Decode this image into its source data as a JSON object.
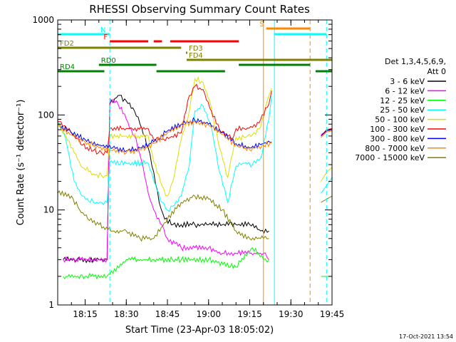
{
  "chart_data": {
    "type": "line",
    "title": "RHESSI Observing Summary Count Rates",
    "xlabel": "Start Time (23-Apr-03 18:05:02)",
    "ylabel": "Count Rate (s⁻¹ detector⁻¹)",
    "y_scale": "log",
    "ylim": [
      1,
      1000
    ],
    "xlim": [
      "18:05",
      "19:45"
    ],
    "x_ticks": [
      "18:15",
      "18:30",
      "18:45",
      "19:00",
      "19:15",
      "19:30",
      "19:45"
    ],
    "y_ticks": [
      "1",
      "10",
      "100",
      "1000"
    ],
    "timestamp": "17-Oct-2021 13:54",
    "legend": {
      "header": [
        "Det 1,3,4,5,6,9,",
        "Att 0"
      ],
      "placement": "right"
    },
    "series": [
      {
        "name": "3 - 6 keV",
        "color": "#000000",
        "x": [
          "18:07",
          "18:12",
          "18:16",
          "18:20",
          "18:23",
          "18:24",
          "18:27",
          "18:30",
          "18:33",
          "18:35",
          "18:38",
          "18:40",
          "18:42",
          "18:44",
          "18:47",
          "18:50",
          "18:55",
          "19:00",
          "19:05",
          "19:10",
          "19:15",
          "19:19",
          "19:22"
        ],
        "y": [
          3,
          3,
          3,
          3,
          3,
          130,
          160,
          140,
          110,
          80,
          45,
          25,
          12,
          8,
          7,
          7,
          7,
          7,
          7,
          7,
          7,
          6,
          6
        ]
      },
      {
        "name": "6 - 12 keV",
        "color": "#ff00ff",
        "x": [
          "18:07",
          "18:15",
          "18:23",
          "18:24",
          "18:27",
          "18:30",
          "18:33",
          "18:36",
          "18:38",
          "18:40",
          "18:43",
          "18:45",
          "18:50",
          "18:55",
          "19:00",
          "19:05",
          "19:10",
          "19:15",
          "19:20",
          "19:22"
        ],
        "y": [
          3,
          3,
          3,
          150,
          130,
          90,
          60,
          30,
          15,
          10,
          7,
          5,
          4,
          4,
          4,
          3.5,
          3.5,
          3.5,
          3.5,
          3
        ]
      },
      {
        "name": "12 - 25 keV",
        "color": "#00ff00",
        "x": [
          "18:07",
          "18:15",
          "18:23",
          "18:30",
          "18:40",
          "18:50",
          "19:00",
          "19:10",
          "19:16",
          "19:20",
          "19:22"
        ],
        "y": [
          2,
          2,
          2,
          3,
          3,
          3,
          3,
          2.5,
          4,
          3,
          3
        ]
      },
      {
        "name": "25 - 50 keV",
        "color": "#00ffff",
        "x": [
          "18:05",
          "18:08",
          "18:11",
          "18:14",
          "18:18",
          "18:21",
          "18:23",
          "18:24",
          "18:30",
          "18:38",
          "18:40",
          "18:43",
          "18:45",
          "18:47",
          "18:50",
          "18:53",
          "18:55",
          "18:58",
          "19:01",
          "19:04",
          "19:07",
          "19:10",
          "19:13",
          "19:16",
          "19:19",
          "19:22",
          "19:23"
        ],
        "y": [
          90,
          55,
          20,
          14,
          12,
          12,
          12,
          32,
          31,
          31,
          20,
          12,
          10,
          11,
          14,
          30,
          110,
          125,
          75,
          25,
          12,
          29,
          31,
          30,
          35,
          90,
          160
        ]
      },
      {
        "name": "50 - 100 keV",
        "color": "#dddd00",
        "x": [
          "18:05",
          "18:08",
          "18:11",
          "18:14",
          "18:18",
          "18:21",
          "18:23",
          "18:24",
          "18:30",
          "18:38",
          "18:40",
          "18:43",
          "18:45",
          "18:47",
          "18:50",
          "18:53",
          "18:55",
          "18:58",
          "19:01",
          "19:04",
          "19:07",
          "19:10",
          "19:13",
          "19:16",
          "19:19",
          "19:22",
          "19:23"
        ],
        "y": [
          80,
          60,
          40,
          28,
          24,
          23,
          23,
          60,
          60,
          60,
          32,
          18,
          14,
          20,
          55,
          110,
          240,
          220,
          120,
          45,
          22,
          58,
          58,
          62,
          75,
          160,
          190
        ]
      },
      {
        "name": "100 - 300 keV",
        "color": "#ff0000",
        "x": [
          "18:05",
          "18:08",
          "18:11",
          "18:14",
          "18:18",
          "18:21",
          "18:23",
          "18:24",
          "18:30",
          "18:38",
          "18:40",
          "18:43",
          "18:46",
          "18:50",
          "18:53",
          "18:55",
          "18:58",
          "19:01",
          "19:04",
          "19:07",
          "19:09",
          "19:10",
          "19:13",
          "19:16",
          "19:19",
          "19:22",
          "19:23"
        ],
        "y": [
          85,
          75,
          60,
          48,
          42,
          40,
          40,
          72,
          72,
          72,
          55,
          55,
          58,
          65,
          160,
          200,
          185,
          110,
          70,
          60,
          58,
          72,
          72,
          74,
          90,
          130,
          180
        ]
      },
      {
        "name": "300 - 800 keV",
        "color": "#0000ff",
        "x": [
          "18:05",
          "18:10",
          "18:15",
          "18:20",
          "18:25",
          "18:30",
          "18:35",
          "18:40",
          "18:45",
          "18:50",
          "18:55",
          "19:00",
          "19:05",
          "19:10",
          "19:15",
          "19:20",
          "19:23"
        ],
        "y": [
          80,
          65,
          55,
          48,
          45,
          42,
          45,
          52,
          68,
          80,
          88,
          80,
          65,
          50,
          45,
          50,
          52
        ]
      },
      {
        "name": "800 - 7000 keV",
        "color": "#ff8800",
        "x": [
          "18:05",
          "18:10",
          "18:15",
          "18:20",
          "18:25",
          "18:30",
          "18:35",
          "18:40",
          "18:45",
          "18:50",
          "18:55",
          "19:00",
          "19:05",
          "19:10",
          "19:15",
          "19:20",
          "19:23"
        ],
        "y": [
          78,
          62,
          52,
          45,
          42,
          40,
          43,
          50,
          65,
          78,
          85,
          78,
          62,
          48,
          43,
          48,
          50
        ]
      },
      {
        "name": "7000 - 15000 keV",
        "color": "#808000",
        "x": [
          "18:05",
          "18:10",
          "18:13",
          "18:16",
          "18:20",
          "18:25",
          "18:30",
          "18:35",
          "18:40",
          "18:45",
          "18:50",
          "18:55",
          "19:00",
          "19:05",
          "19:10",
          "19:15",
          "19:20",
          "19:22"
        ],
        "y": [
          15,
          14,
          10,
          8,
          7,
          6,
          6,
          5,
          5,
          8,
          12,
          14,
          13,
          10,
          6,
          5,
          5,
          5
        ]
      }
    ],
    "late_segment": {
      "x": [
        "19:41",
        "19:43",
        "19:45"
      ],
      "series_values": {
        "6 - 12 keV": [
          62,
          68,
          70
        ],
        "25 - 50 keV": [
          15,
          18,
          22
        ],
        "50 - 100 keV": [
          20,
          25,
          28
        ],
        "100 - 300 keV": [
          60,
          70,
          72
        ],
        "300 - 800 keV": [
          60,
          68,
          70
        ],
        "800 - 7000 keV": [
          58,
          66,
          68
        ],
        "7000 - 15000 keV": [
          12,
          13,
          14
        ],
        "12 - 25 keV": [
          2,
          2,
          2
        ]
      }
    },
    "flag_bars": [
      {
        "label": "N",
        "color": "#00ffff",
        "segments": [
          [
            "18:05",
            "18:24"
          ],
          [
            "19:24",
            "19:43"
          ]
        ]
      },
      {
        "label": "F",
        "color": "#ff0000",
        "segments": [
          [
            "18:24",
            "18:38"
          ],
          [
            "18:40",
            "18:43"
          ],
          [
            "18:46",
            "19:11"
          ]
        ]
      },
      {
        "label": "S",
        "color": "#ff8800",
        "segments": [
          [
            "19:21",
            "19:37"
          ]
        ]
      },
      {
        "label": "FD2",
        "color": "#808000",
        "segments": [
          [
            "18:05",
            "18:50"
          ]
        ]
      },
      {
        "label": "FD3",
        "color": "#808000",
        "segments": [
          [
            "18:52",
            "18:52"
          ]
        ]
      },
      {
        "label": "FD4",
        "color": "#808000",
        "segments": [
          [
            "18:52",
            "19:45"
          ]
        ]
      },
      {
        "label": "RD0",
        "color": "#008000",
        "segments": [
          [
            "18:20",
            "18:41"
          ],
          [
            "19:11",
            "19:37"
          ]
        ]
      },
      {
        "label": "RD4",
        "color": "#008000",
        "segments": [
          [
            "18:05",
            "18:22"
          ],
          [
            "18:41",
            "19:06"
          ],
          [
            "19:39",
            "19:45"
          ]
        ]
      }
    ],
    "vertical_markers": [
      {
        "x": "18:24",
        "color": "#00ffff",
        "style": "dashed"
      },
      {
        "x": "19:20",
        "color": "#ff8800",
        "style": "solid"
      },
      {
        "x": "19:24",
        "color": "#00ffff",
        "style": "solid"
      },
      {
        "x": "19:37",
        "color": "#ff8800",
        "style": "dashed"
      },
      {
        "x": "19:43",
        "color": "#00ffff",
        "style": "dashed"
      }
    ],
    "grid": false
  }
}
